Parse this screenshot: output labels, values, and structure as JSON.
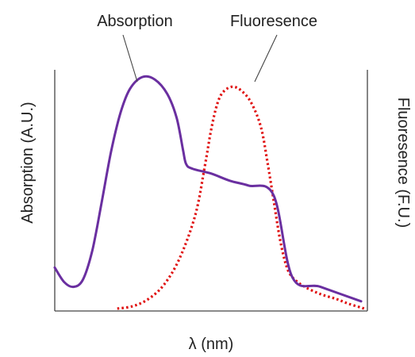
{
  "chart_data": {
    "type": "line",
    "xlabel": "λ (nm)",
    "ylabel_left": "Absorption (A.U.)",
    "ylabel_right": "Fluoresence (F.U.)",
    "xlim": [
      0,
      100
    ],
    "ylim": [
      0,
      100
    ],
    "grid": false,
    "axis_ticks": false,
    "series": [
      {
        "name": "Absorption",
        "style": "solid",
        "color": "#6a2fa0",
        "points": [
          [
            0,
            18
          ],
          [
            3,
            12
          ],
          [
            6,
            10
          ],
          [
            9,
            13
          ],
          [
            12,
            25
          ],
          [
            15,
            45
          ],
          [
            18,
            66
          ],
          [
            21,
            82
          ],
          [
            24,
            92
          ],
          [
            28,
            97
          ],
          [
            32,
            96
          ],
          [
            36,
            90
          ],
          [
            39,
            80
          ],
          [
            41,
            67
          ],
          [
            42,
            61
          ],
          [
            44,
            59
          ],
          [
            50,
            57
          ],
          [
            56,
            54
          ],
          [
            62,
            52
          ],
          [
            70,
            48
          ],
          [
            76,
            14
          ],
          [
            85,
            10
          ],
          [
            98,
            4
          ]
        ]
      },
      {
        "name": "Fluoresence",
        "style": "dotted",
        "color": "#e01010",
        "points": [
          [
            20,
            1
          ],
          [
            25,
            2
          ],
          [
            30,
            5
          ],
          [
            35,
            11
          ],
          [
            40,
            22
          ],
          [
            45,
            40
          ],
          [
            48,
            60
          ],
          [
            50,
            75
          ],
          [
            52,
            86
          ],
          [
            54,
            91
          ],
          [
            57,
            93
          ],
          [
            60,
            91
          ],
          [
            63,
            86
          ],
          [
            66,
            76
          ],
          [
            68,
            62
          ],
          [
            70,
            46
          ],
          [
            72,
            30
          ],
          [
            74,
            19
          ],
          [
            76,
            14
          ],
          [
            80,
            10
          ],
          [
            85,
            7
          ],
          [
            90,
            5
          ],
          [
            94,
            3
          ],
          [
            99,
            1
          ]
        ]
      }
    ]
  }
}
